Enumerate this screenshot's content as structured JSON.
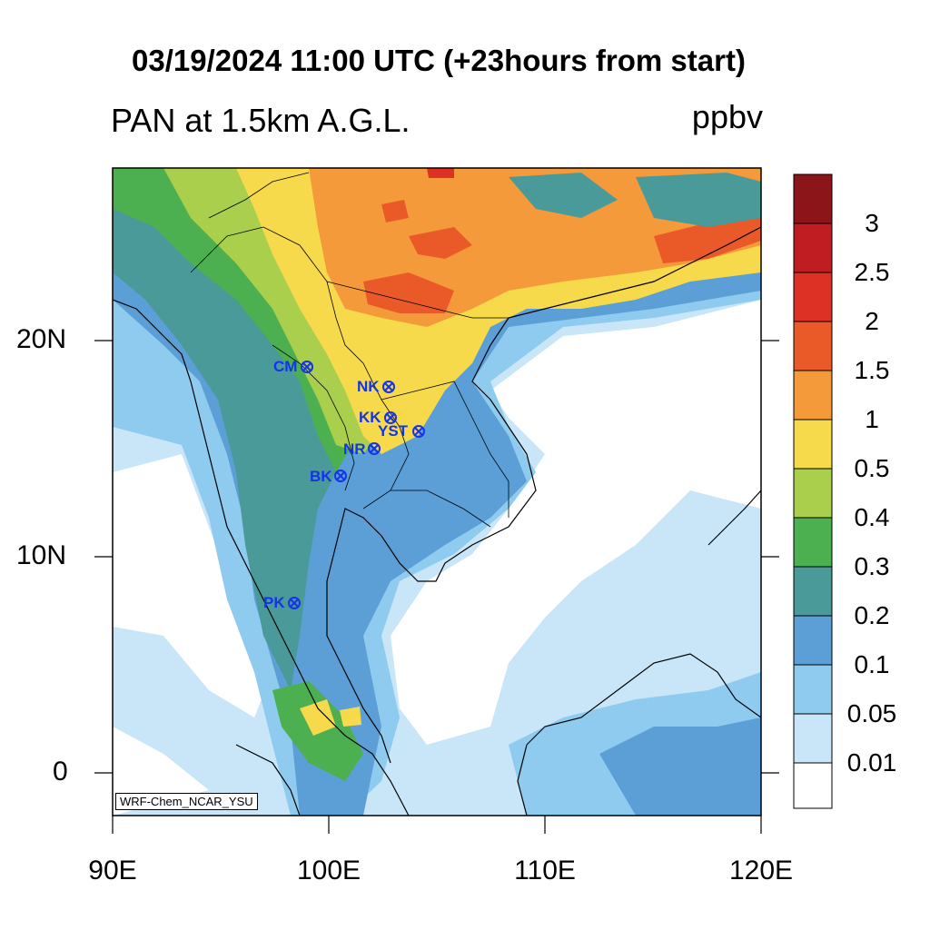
{
  "title": "03/19/2024 11:00 UTC (+23hours from start)",
  "subtitle": "PAN at 1.5km A.G.L.",
  "units": "ppbv",
  "credit": "WRF-Chem_NCAR_YSU",
  "axes": {
    "x_labels": [
      "90E",
      "100E",
      "110E",
      "120E"
    ],
    "y_labels": [
      "20N",
      "10N",
      "0"
    ]
  },
  "colorbar": {
    "labels": [
      "3",
      "2.5",
      "2",
      "1.5",
      "1",
      "0.5",
      "0.4",
      "0.3",
      "0.2",
      "0.1",
      "0.05",
      "0.01"
    ],
    "colors": [
      "#8b1518",
      "#bf1d22",
      "#de3126",
      "#ea5a28",
      "#f59a3a",
      "#f7d94c",
      "#a9cf4c",
      "#4caf50",
      "#4a9a9a",
      "#5b9fd6",
      "#8ecbef",
      "#c8e6f8",
      "#ffffff"
    ]
  },
  "stations": [
    {
      "name": "CM"
    },
    {
      "name": "NK"
    },
    {
      "name": "KK"
    },
    {
      "name": "YST"
    },
    {
      "name": "NR"
    },
    {
      "name": "BK"
    },
    {
      "name": "PK"
    }
  ]
}
